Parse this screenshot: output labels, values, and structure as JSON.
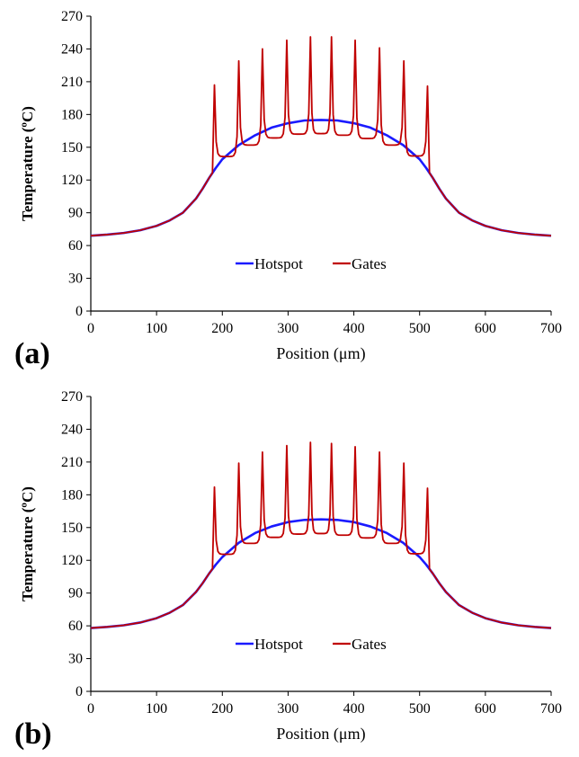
{
  "chart_data": [
    {
      "type": "line",
      "panel_label": "(a)",
      "xlabel": "Position  (μm)",
      "ylabel": "Temperature  (ºC)",
      "xlim": [
        0,
        700
      ],
      "ylim": [
        0,
        270
      ],
      "xticks": [
        0,
        100,
        200,
        300,
        400,
        500,
        600,
        700
      ],
      "yticks": [
        0,
        30,
        60,
        90,
        120,
        150,
        180,
        210,
        240,
        270
      ],
      "legend_position": "center",
      "series": [
        {
          "name": "Hotspot",
          "color": "#1a1aff",
          "x": [
            0,
            25,
            50,
            75,
            100,
            120,
            140,
            160,
            170,
            180,
            190,
            200,
            225,
            250,
            275,
            300,
            325,
            350,
            375,
            400,
            425,
            450,
            475,
            500,
            510,
            520,
            530,
            540,
            560,
            580,
            600,
            625,
            650,
            675,
            700
          ],
          "y": [
            69,
            70,
            71.5,
            74,
            78,
            83,
            90,
            103,
            112,
            122,
            131,
            139,
            152,
            161,
            168,
            172,
            174.5,
            175,
            174.5,
            172,
            168,
            161,
            152,
            139,
            131,
            122,
            112,
            103,
            90,
            83,
            78,
            74,
            71.5,
            70,
            69
          ]
        },
        {
          "name": "Gates",
          "color": "#c00000",
          "baseline": [
            69,
            70,
            71.5,
            74,
            78,
            83,
            90,
            103,
            112,
            122,
            130
          ],
          "gate_x": [
            188,
            225,
            261,
            298,
            334,
            366,
            402,
            439,
            476,
            512
          ],
          "gate_peaks": [
            207,
            229,
            240,
            248,
            251,
            251,
            248,
            241,
            229,
            206
          ],
          "gate_valleys": [
            135,
            148,
            156,
            161,
            163,
            162,
            160,
            156,
            148,
            136
          ]
        }
      ]
    },
    {
      "type": "line",
      "panel_label": "(b)",
      "xlabel": "Position  (μm)",
      "ylabel": "Temperature  (ºC)",
      "xlim": [
        0,
        700
      ],
      "ylim": [
        0,
        270
      ],
      "xticks": [
        0,
        100,
        200,
        300,
        400,
        500,
        600,
        700
      ],
      "yticks": [
        0,
        30,
        60,
        90,
        120,
        150,
        180,
        210,
        240,
        270
      ],
      "legend_position": "center",
      "series": [
        {
          "name": "Hotspot",
          "color": "#1a1aff",
          "x": [
            0,
            25,
            50,
            75,
            100,
            120,
            140,
            160,
            170,
            180,
            190,
            200,
            225,
            250,
            275,
            300,
            325,
            350,
            375,
            400,
            425,
            450,
            475,
            500,
            510,
            520,
            530,
            540,
            560,
            580,
            600,
            625,
            650,
            675,
            700
          ],
          "y": [
            58,
            59,
            60.5,
            63,
            67,
            72,
            79,
            91,
            99,
            108,
            116,
            123,
            136,
            145,
            151,
            155,
            157,
            157.5,
            157,
            155,
            151,
            145,
            136,
            123,
            116,
            108,
            99,
            91,
            79,
            72,
            67,
            63,
            60.5,
            59,
            58
          ]
        },
        {
          "name": "Gates",
          "color": "#c00000",
          "baseline": [
            58,
            59,
            60.5,
            63,
            67,
            72,
            79,
            91,
            99,
            108,
            116
          ],
          "gate_x": [
            188,
            225,
            261,
            298,
            334,
            366,
            402,
            439,
            476,
            512
          ],
          "gate_peaks": [
            187,
            209,
            219,
            225,
            228,
            227,
            224,
            219,
            209,
            186
          ],
          "gate_valleys": [
            119,
            132,
            139,
            143,
            145,
            144,
            142,
            139,
            132,
            120
          ]
        }
      ]
    }
  ]
}
